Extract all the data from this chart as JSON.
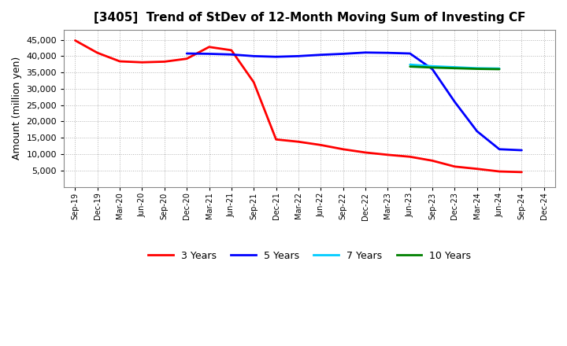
{
  "title": "[3405]  Trend of StDev of 12-Month Moving Sum of Investing CF",
  "ylabel": "Amount (million yen)",
  "background_color": "#ffffff",
  "plot_bg_color": "#ffffff",
  "grid_color": "#aaaaaa",
  "x_labels": [
    "Sep-19",
    "Dec-19",
    "Mar-20",
    "Jun-20",
    "Sep-20",
    "Dec-20",
    "Mar-21",
    "Jun-21",
    "Sep-21",
    "Dec-21",
    "Mar-22",
    "Jun-22",
    "Sep-22",
    "Dec-22",
    "Mar-23",
    "Jun-23",
    "Sep-23",
    "Dec-23",
    "Mar-24",
    "Jun-24",
    "Sep-24",
    "Dec-24"
  ],
  "series": {
    "3 Years": {
      "color": "#ff0000",
      "data_x": [
        0,
        1,
        2,
        3,
        4,
        5,
        6,
        7,
        8,
        9,
        10,
        11,
        12,
        13,
        14,
        15,
        16,
        17,
        18,
        19,
        20
      ],
      "data_y": [
        44800,
        41000,
        38400,
        38100,
        38300,
        39200,
        42800,
        41800,
        32000,
        14500,
        13800,
        12800,
        11500,
        10500,
        9800,
        9200,
        8000,
        6200,
        5500,
        4700,
        4500
      ]
    },
    "5 Years": {
      "color": "#0000ff",
      "data_x": [
        5,
        6,
        7,
        8,
        9,
        10,
        11,
        12,
        13,
        14,
        15,
        16,
        17,
        18,
        19,
        20
      ],
      "data_y": [
        40800,
        40700,
        40500,
        40000,
        39800,
        40000,
        40400,
        40700,
        41100,
        41000,
        40800,
        36000,
        26000,
        17000,
        11500,
        11200
      ]
    },
    "7 Years": {
      "color": "#00ccff",
      "data_x": [
        15,
        16,
        17,
        18,
        19
      ],
      "data_y": [
        37400,
        36900,
        36600,
        36300,
        36200
      ]
    },
    "10 Years": {
      "color": "#008000",
      "data_x": [
        15,
        16,
        17,
        18,
        19
      ],
      "data_y": [
        36800,
        36500,
        36300,
        36100,
        36000
      ]
    }
  },
  "ylim": [
    0,
    48000
  ],
  "yticks": [
    5000,
    10000,
    15000,
    20000,
    25000,
    30000,
    35000,
    40000,
    45000
  ],
  "title_fontsize": 11,
  "axis_fontsize": 9,
  "legend_fontsize": 9
}
